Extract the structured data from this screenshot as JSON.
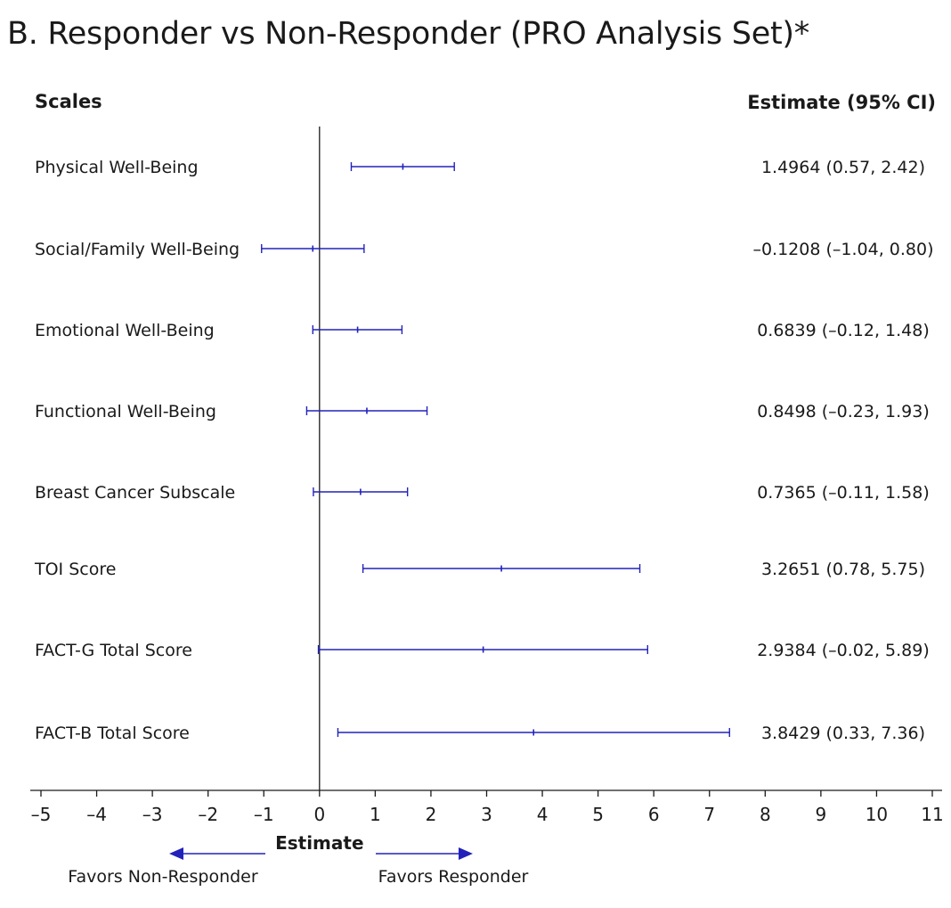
{
  "title": "B. Responder vs Non-Responder (PRO Analysis Set)*",
  "chart_data": {
    "type": "forest",
    "column_headers": {
      "scales": "Scales",
      "estimate": "Estimate (95% CI)"
    },
    "rows": [
      {
        "label": "Physical Well-Being",
        "estimate": 1.4964,
        "lower": 0.57,
        "upper": 2.42,
        "text": "1.4964 (0.57, 2.42)"
      },
      {
        "label": "Social/Family Well-Being",
        "estimate": -0.1208,
        "lower": -1.04,
        "upper": 0.8,
        "text": "–0.1208 (–1.04, 0.80)"
      },
      {
        "label": "Emotional Well-Being",
        "estimate": 0.6839,
        "lower": -0.12,
        "upper": 1.48,
        "text": "0.6839 (–0.12, 1.48)"
      },
      {
        "label": "Functional Well-Being",
        "estimate": 0.8498,
        "lower": -0.23,
        "upper": 1.93,
        "text": "0.8498 (–0.23, 1.93)"
      },
      {
        "label": "Breast Cancer Subscale",
        "estimate": 0.7365,
        "lower": -0.11,
        "upper": 1.58,
        "text": "0.7365 (–0.11, 1.58)"
      },
      {
        "label": "TOI Score",
        "estimate": 3.2651,
        "lower": 0.78,
        "upper": 5.75,
        "text": "3.2651 (0.78, 5.75)"
      },
      {
        "label": "FACT-G Total Score",
        "estimate": 2.9384,
        "lower": -0.02,
        "upper": 5.89,
        "text": "2.9384 (–0.02, 5.89)"
      },
      {
        "label": "FACT-B Total Score",
        "estimate": 3.8429,
        "lower": 0.33,
        "upper": 7.36,
        "text": "3.8429 (0.33, 7.36)"
      }
    ],
    "xlim": [
      -5,
      11
    ],
    "x_ticks": [
      -5,
      -4,
      -3,
      -2,
      -1,
      0,
      1,
      2,
      3,
      4,
      5,
      6,
      7,
      8,
      9,
      10,
      11
    ],
    "x_tick_labels": [
      "–5",
      "–4",
      "–3",
      "–2",
      "–1",
      "0",
      "1",
      "2",
      "3",
      "4",
      "5",
      "6",
      "7",
      "8",
      "9",
      "10",
      "11"
    ],
    "reference_line": 0,
    "xlabel": "Estimate",
    "direction_labels": {
      "left": "Favors Non-Responder",
      "right": "Favors Responder"
    },
    "colors": {
      "interval": "#2222bb",
      "text": "#1a1a1a",
      "axis": "#1a1a1a"
    }
  }
}
